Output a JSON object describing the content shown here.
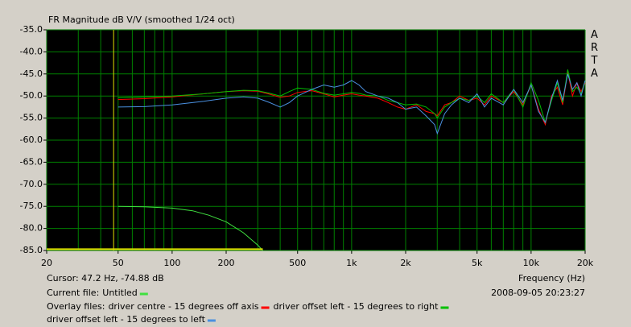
{
  "chart_data": {
    "type": "line",
    "title": "FR Magnitude dB V/V (smoothed 1/24 oct)",
    "xlabel": "Frequency (Hz)",
    "xscale": "log",
    "xlim": [
      20,
      20000
    ],
    "ylim": [
      -85,
      -35
    ],
    "grid": true,
    "xticks": [
      20,
      50,
      100,
      200,
      500,
      {
        "value": 1000,
        "label": "1k"
      },
      {
        "value": 2000,
        "label": "2k"
      },
      {
        "value": 5000,
        "label": "5k"
      },
      {
        "value": 10000,
        "label": "10k"
      },
      {
        "value": 20000,
        "label": "20k"
      }
    ],
    "x_minor_grid": [
      30,
      40,
      60,
      70,
      80,
      90,
      300,
      400,
      600,
      700,
      800,
      900,
      3000,
      4000,
      6000,
      7000,
      8000,
      9000
    ],
    "yticks": [
      {
        "value": -35,
        "label": "-35.0"
      },
      {
        "value": -40,
        "label": "-40.0"
      },
      {
        "value": -45,
        "label": "-45.0"
      },
      {
        "value": -50,
        "label": "-50.0"
      },
      {
        "value": -55,
        "label": "-55.0"
      },
      {
        "value": -60,
        "label": "-60.0"
      },
      {
        "value": -65,
        "label": "-65.0"
      },
      {
        "value": -70,
        "label": "-70.0"
      },
      {
        "value": -75,
        "label": "-75.0"
      },
      {
        "value": -80,
        "label": "-80.0"
      },
      {
        "value": -85,
        "label": "-85.0"
      }
    ],
    "cursor_x": 47.2,
    "series": [
      {
        "name": "driver centre - 15 degrees off axis",
        "color": "#ff0000",
        "x": [
          50,
          70,
          100,
          150,
          200,
          250,
          300,
          350,
          400,
          450,
          500,
          600,
          700,
          800,
          900,
          1000,
          1100,
          1200,
          1400,
          1600,
          1800,
          2000,
          2300,
          2600,
          2900,
          3000,
          3300,
          3600,
          4000,
          4500,
          5000,
          5500,
          6000,
          7000,
          8000,
          9000,
          10000,
          11000,
          12000,
          13000,
          14000,
          15000,
          16000,
          17000,
          18000,
          19000,
          20000
        ],
        "values": [
          -50.8,
          -50.6,
          -50.2,
          -49.5,
          -49.0,
          -48.8,
          -48.9,
          -49.6,
          -50.3,
          -50.0,
          -49.2,
          -48.8,
          -49.5,
          -50.2,
          -49.8,
          -49.5,
          -49.8,
          -50.0,
          -50.5,
          -51.5,
          -52.5,
          -53.0,
          -52.0,
          -53.5,
          -54.0,
          -54.5,
          -52.0,
          -51.5,
          -50.0,
          -51.0,
          -50.5,
          -52.0,
          -50.0,
          -51.5,
          -49.0,
          -52.0,
          -47.5,
          -53.0,
          -56.5,
          -50.0,
          -48.0,
          -52.0,
          -44.5,
          -50.0,
          -47.0,
          -49.0,
          -47.0
        ]
      },
      {
        "name": "driver offset left - 15 degrees to right",
        "color": "#00c000",
        "x": [
          50,
          70,
          100,
          150,
          200,
          250,
          300,
          350,
          400,
          450,
          500,
          600,
          700,
          800,
          900,
          1000,
          1100,
          1200,
          1400,
          1600,
          1800,
          2000,
          2300,
          2600,
          2900,
          3000,
          3300,
          3600,
          4000,
          4500,
          5000,
          5500,
          6000,
          7000,
          8000,
          9000,
          10000,
          11000,
          12000,
          13000,
          14000,
          15000,
          16000,
          17000,
          18000,
          19000,
          20000
        ],
        "values": [
          -50.4,
          -50.2,
          -50.0,
          -49.5,
          -49.0,
          -48.7,
          -48.8,
          -49.4,
          -50.0,
          -49.0,
          -48.2,
          -48.5,
          -49.4,
          -49.8,
          -49.5,
          -49.2,
          -49.4,
          -49.8,
          -50.0,
          -51.0,
          -51.5,
          -52.0,
          -51.8,
          -52.5,
          -54.0,
          -55.0,
          -52.5,
          -51.5,
          -50.5,
          -51.0,
          -50.0,
          -51.5,
          -49.5,
          -51.5,
          -48.5,
          -52.5,
          -47.0,
          -51.0,
          -56.0,
          -51.0,
          -47.0,
          -51.5,
          -44.0,
          -49.0,
          -48.0,
          -49.5,
          -46.5
        ]
      },
      {
        "name": "driver offset left - 15 degrees to left",
        "color": "#4a90e0",
        "x": [
          50,
          70,
          100,
          150,
          200,
          250,
          300,
          350,
          400,
          450,
          500,
          600,
          700,
          800,
          900,
          1000,
          1100,
          1200,
          1400,
          1600,
          1800,
          2000,
          2300,
          2600,
          2900,
          3000,
          3300,
          3600,
          4000,
          4500,
          5000,
          5500,
          6000,
          7000,
          8000,
          9000,
          10000,
          11000,
          12000,
          13000,
          14000,
          15000,
          16000,
          17000,
          18000,
          19000,
          20000
        ],
        "values": [
          -52.5,
          -52.4,
          -52.0,
          -51.2,
          -50.5,
          -50.2,
          -50.5,
          -51.5,
          -52.5,
          -51.5,
          -50.0,
          -48.5,
          -47.5,
          -48.0,
          -47.5,
          -46.5,
          -47.5,
          -49.0,
          -50.0,
          -50.5,
          -51.5,
          -53.0,
          -52.5,
          -54.5,
          -56.5,
          -58.5,
          -54.0,
          -52.0,
          -50.5,
          -51.5,
          -49.5,
          -52.5,
          -50.5,
          -52.0,
          -48.5,
          -51.5,
          -47.5,
          -53.5,
          -56.0,
          -50.5,
          -46.5,
          -51.0,
          -45.0,
          -48.5,
          -47.0,
          -50.0,
          -46.5
        ]
      },
      {
        "name": "Untitled",
        "color": "#40e040",
        "x": [
          50,
          70,
          100,
          130,
          160,
          200,
          250,
          300,
          320
        ],
        "values": [
          -75.0,
          -75.1,
          -75.4,
          -76.0,
          -77.0,
          -78.5,
          -81.0,
          -83.8,
          -85.0
        ]
      },
      {
        "color": "#e0e000",
        "x": [
          20,
          320
        ],
        "values": [
          -84.7,
          -84.7
        ]
      }
    ]
  },
  "status": {
    "cursor": "Cursor: 47.2 Hz, -74.88 dB",
    "current_file_label": "Current file:",
    "overlay_label": "Overlay files:",
    "timestamp": "2008-09-05  20:23:27",
    "brand": "ARTA"
  }
}
